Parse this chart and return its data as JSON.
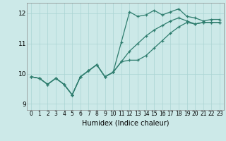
{
  "title": "",
  "xlabel": "Humidex (Indice chaleur)",
  "ylabel": "",
  "background_color": "#cce9e8",
  "grid_color": "#aad4d3",
  "line_color": "#2e7d6e",
  "xlim": [
    -0.5,
    23.5
  ],
  "ylim": [
    8.8,
    12.35
  ],
  "yticks": [
    9,
    10,
    11,
    12
  ],
  "xticks": [
    0,
    1,
    2,
    3,
    4,
    5,
    6,
    7,
    8,
    9,
    10,
    11,
    12,
    13,
    14,
    15,
    16,
    17,
    18,
    19,
    20,
    21,
    22,
    23
  ],
  "series": [
    {
      "x": [
        0,
        1,
        2,
        3,
        4,
        5,
        6,
        7,
        8,
        9,
        10,
        11,
        12,
        13,
        14,
        15,
        16,
        17,
        18,
        19,
        20,
        21,
        22,
        23
      ],
      "y": [
        9.9,
        9.85,
        9.65,
        9.85,
        9.65,
        9.3,
        9.9,
        10.1,
        10.3,
        9.9,
        10.05,
        11.05,
        12.05,
        11.9,
        11.95,
        12.1,
        11.95,
        12.05,
        12.15,
        11.9,
        11.85,
        11.75,
        11.8,
        11.8
      ]
    },
    {
      "x": [
        0,
        1,
        2,
        3,
        4,
        5,
        6,
        7,
        8,
        9,
        10,
        11,
        12,
        13,
        14,
        15,
        16,
        17,
        18,
        19,
        20,
        21,
        22,
        23
      ],
      "y": [
        9.9,
        9.85,
        9.65,
        9.85,
        9.65,
        9.3,
        9.9,
        10.1,
        10.3,
        9.9,
        10.05,
        10.4,
        10.45,
        10.45,
        10.6,
        10.85,
        11.1,
        11.35,
        11.55,
        11.7,
        11.65,
        11.7,
        11.7,
        11.7
      ]
    },
    {
      "x": [
        0,
        1,
        2,
        3,
        4,
        5,
        6,
        7,
        8,
        9,
        10,
        11,
        12,
        13,
        14,
        15,
        16,
        17,
        18,
        19,
        20,
        21,
        22,
        23
      ],
      "y": [
        9.9,
        9.85,
        9.65,
        9.85,
        9.65,
        9.3,
        9.9,
        10.1,
        10.3,
        9.9,
        10.05,
        10.4,
        10.75,
        11.0,
        11.25,
        11.45,
        11.6,
        11.75,
        11.85,
        11.75,
        11.65,
        11.7,
        11.7,
        11.7
      ]
    }
  ]
}
